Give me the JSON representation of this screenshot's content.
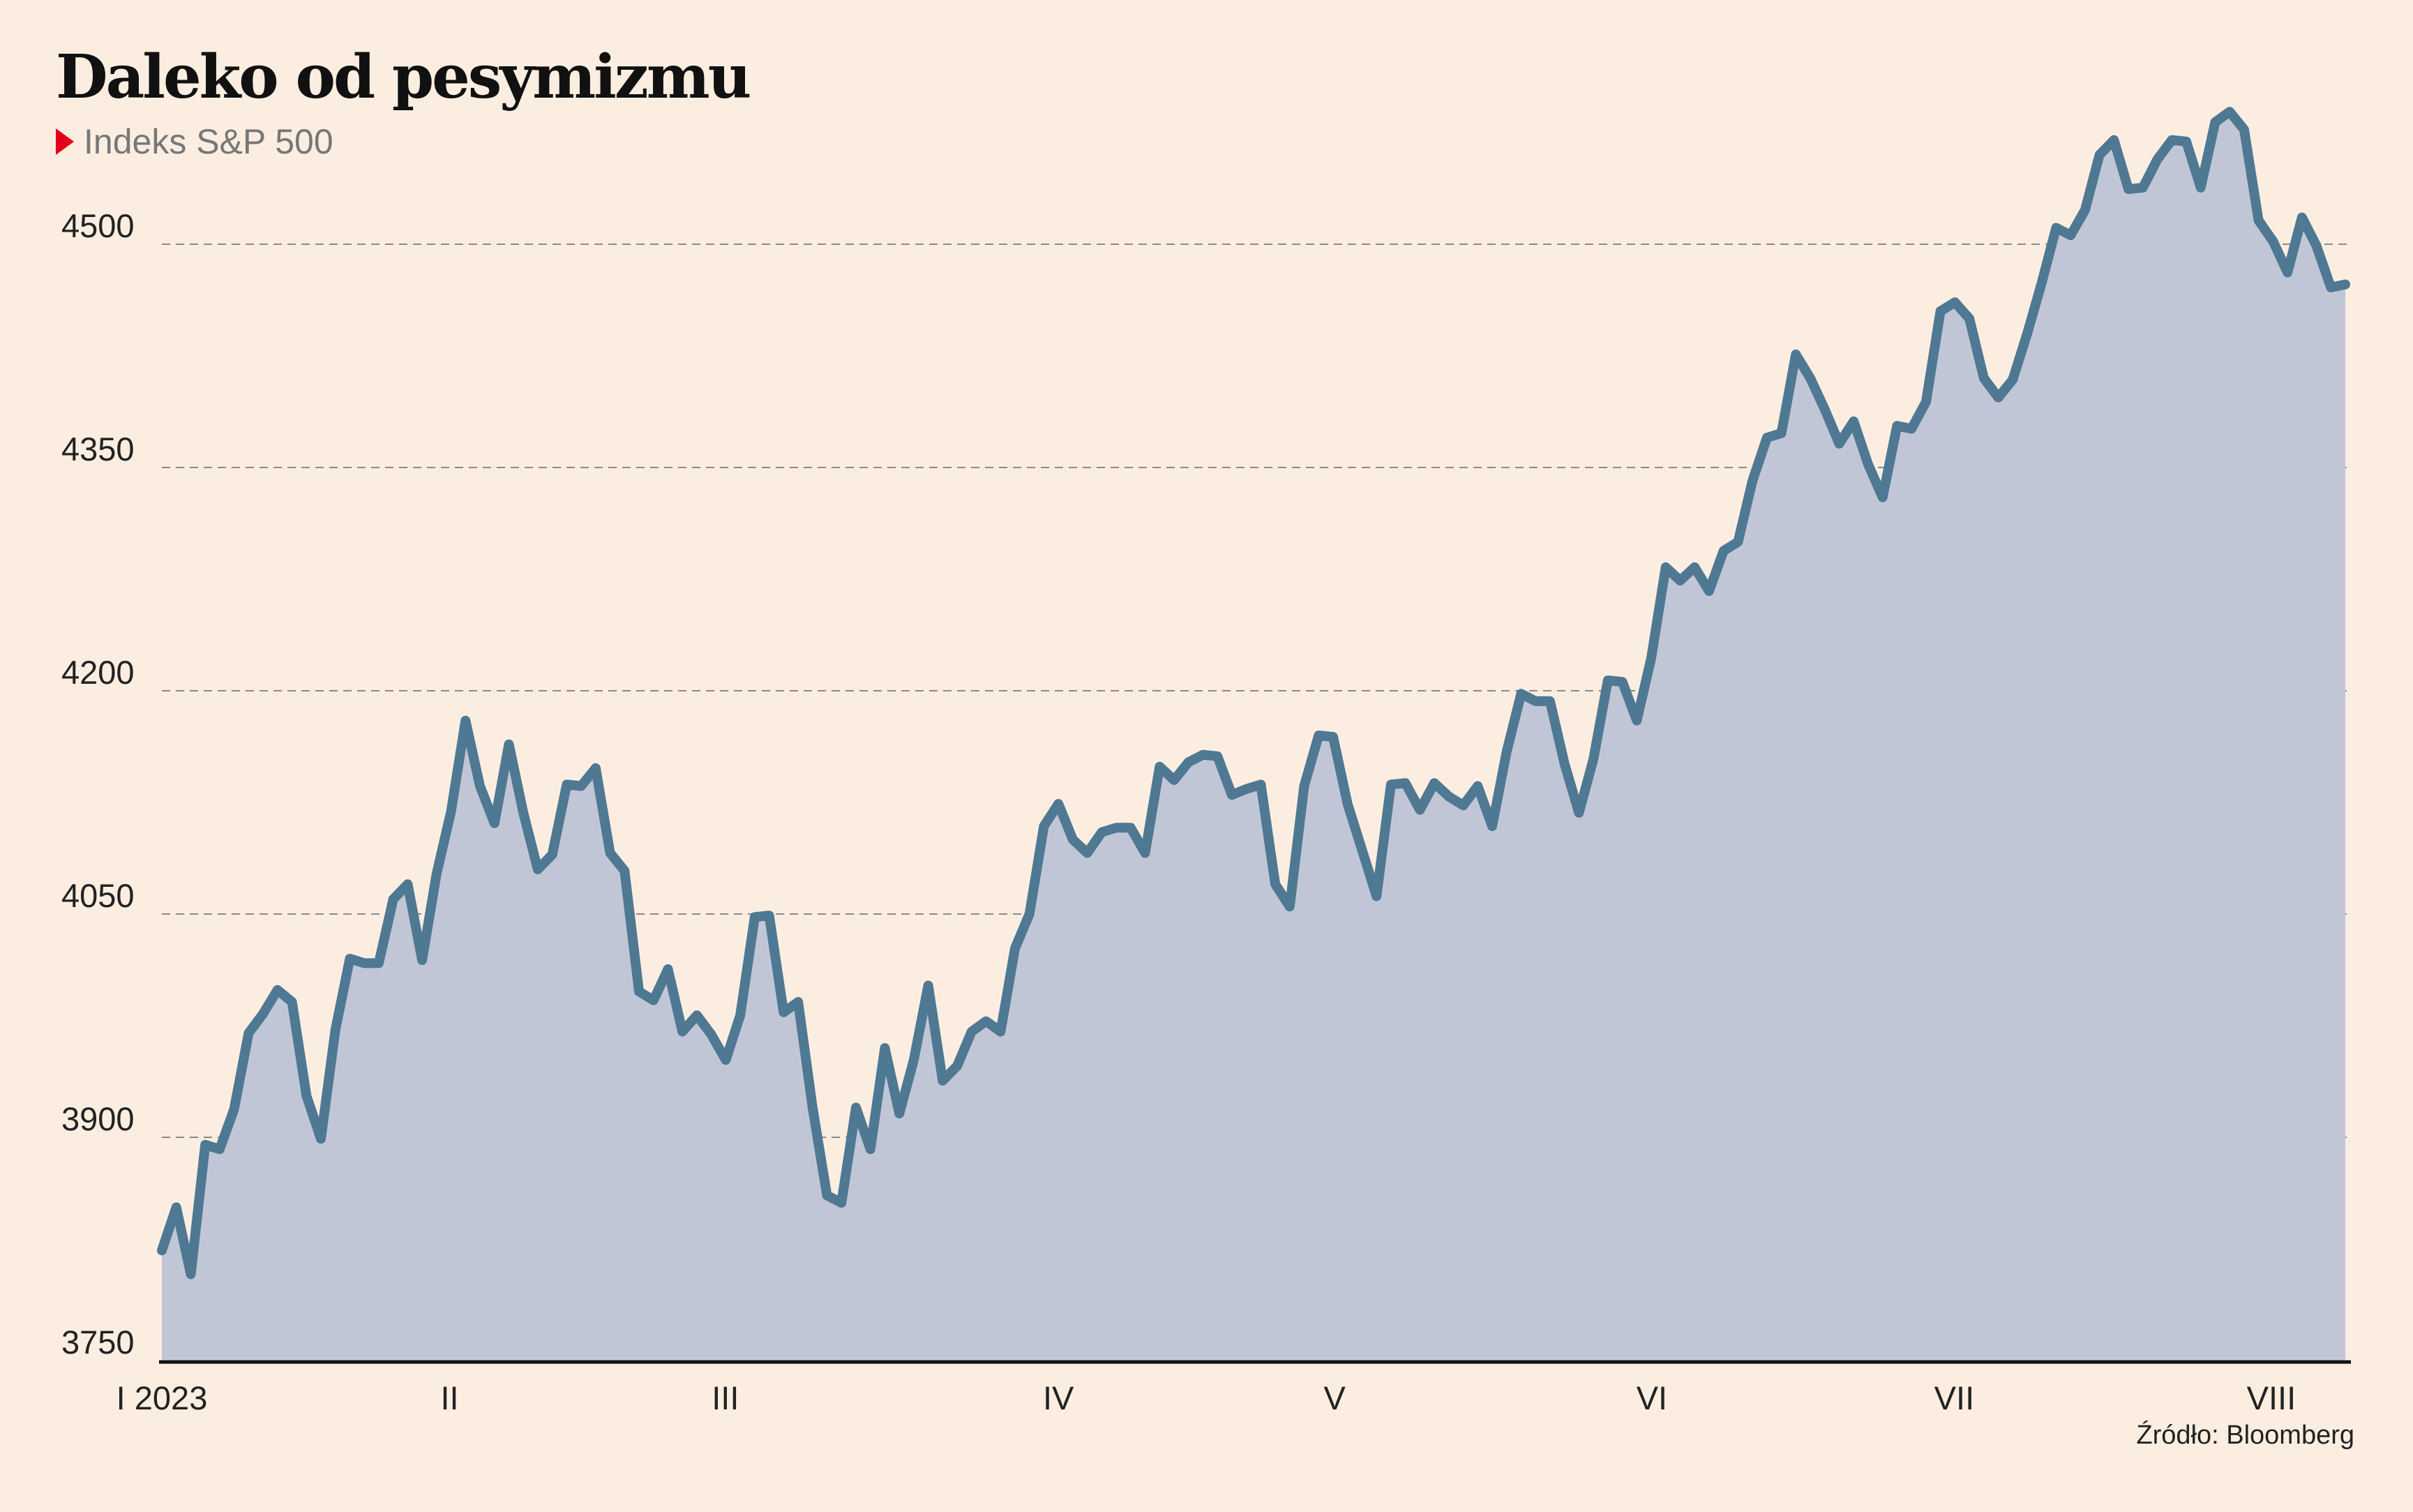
{
  "header": {
    "title": "Daleko od pesymizmu",
    "subtitle": "Indeks S&P 500"
  },
  "footer": {
    "source": "Źródło: Bloomberg"
  },
  "colors": {
    "background": "#fbeee1",
    "line": "#4f7893",
    "area": "#c1c6d6",
    "grid": "#8a8a8a",
    "axis": "#111111",
    "marker": "#e3001b"
  },
  "chart_data": {
    "type": "area",
    "title": "Daleko od pesymizmu",
    "subtitle": "Indeks S&P 500",
    "xlabel": "",
    "ylabel": "",
    "ylim": [
      3750,
      4560
    ],
    "yticks": [
      3750,
      3900,
      4050,
      4200,
      4350,
      4500
    ],
    "grid": "horizontal dashed",
    "legend": "none",
    "xticks": [
      {
        "label": "I 2023",
        "t": 0.0
      },
      {
        "label": "II",
        "t": 0.1318
      },
      {
        "label": "III",
        "t": 0.2581
      },
      {
        "label": "IV",
        "t": 0.4106
      },
      {
        "label": "V",
        "t": 0.5371
      },
      {
        "label": "VI",
        "t": 0.6824
      },
      {
        "label": "VII",
        "t": 0.8209
      },
      {
        "label": "VIII",
        "t": 0.9661
      }
    ],
    "series": [
      {
        "values": [
          3824,
          3853,
          3808,
          3895,
          3892,
          3919,
          3970,
          3983,
          3999,
          3991,
          3928,
          3899,
          3972,
          4020,
          4017,
          4017,
          4060,
          4070,
          4019,
          4077,
          4119,
          4180,
          4136,
          4111,
          4164,
          4118,
          4080,
          4090,
          4137,
          4136,
          4148,
          4091,
          4079,
          3998,
          3992,
          4013,
          3971,
          3982,
          3969,
          3952,
          3982,
          4048,
          4049,
          3984,
          3991,
          3920,
          3861,
          3856,
          3920,
          3892,
          3960,
          3916,
          3952,
          4002,
          3938,
          3948,
          3971,
          3978,
          3971,
          4027,
          4050,
          4109,
          4124,
          4100,
          4091,
          4105,
          4108,
          4108,
          4091,
          4149,
          4140,
          4152,
          4157,
          4156,
          4130,
          4134,
          4137,
          4070,
          4055,
          4136,
          4170,
          4169,
          4124,
          4093,
          4062,
          4137,
          4138,
          4120,
          4138,
          4129,
          4123,
          4136,
          4109,
          4159,
          4198,
          4193,
          4193,
          4151,
          4118,
          4154,
          4207,
          4206,
          4180,
          4222,
          4283,
          4274,
          4283,
          4267,
          4294,
          4300,
          4341,
          4370,
          4373,
          4426,
          4410,
          4389,
          4366,
          4381,
          4352,
          4330,
          4378,
          4376,
          4394,
          4455,
          4461,
          4450,
          4410,
          4397,
          4409,
          4440,
          4474,
          4511,
          4506,
          4523,
          4560,
          4570,
          4537,
          4538,
          4557,
          4570,
          4569,
          4538,
          4582,
          4589,
          4577,
          4516,
          4502,
          4481,
          4518,
          4499,
          4471,
          4473
        ]
      }
    ]
  }
}
